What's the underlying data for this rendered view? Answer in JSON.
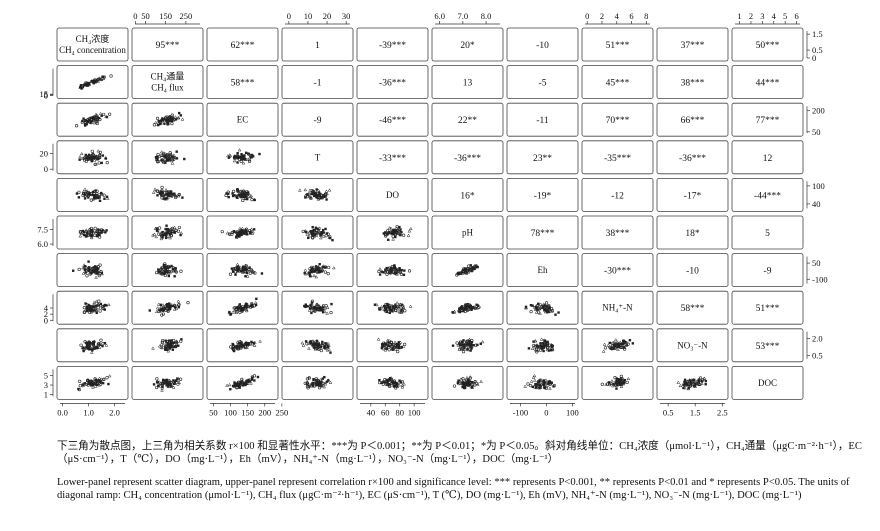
{
  "chart_data": {
    "type": "scatter-matrix",
    "variables": [
      {
        "key": "ch4_conc",
        "label_lines": [
          "CH₄浓度",
          "CH₄ concentration"
        ],
        "range": [
          0,
          1.7
        ],
        "ticks": [
          "0",
          "0.5",
          "1.5"
        ],
        "tick_values": [
          0,
          0.5,
          1.5
        ]
      },
      {
        "key": "ch4_flux",
        "label_lines": [
          "CH₄通量",
          "CH₄ flux"
        ],
        "range": [
          -2,
          320
        ],
        "ticks": [
          "0",
          "50",
          "150",
          "250"
        ],
        "tick_values": [
          0,
          50,
          150,
          250
        ]
      },
      {
        "key": "ec",
        "label_lines": [
          "EC"
        ],
        "range": [
          40,
          230
        ],
        "ticks": [
          "50",
          "200"
        ],
        "tick_values": [
          50,
          200
        ]
      },
      {
        "key": "t",
        "label_lines": [
          "T"
        ],
        "range": [
          -2,
          32
        ],
        "ticks": [
          "0",
          "10",
          "20",
          "30"
        ],
        "tick_values": [
          0,
          10,
          20,
          30
        ]
      },
      {
        "key": "do",
        "label_lines": [
          "DO"
        ],
        "range": [
          25,
          115
        ],
        "ticks": [
          "40",
          "100"
        ],
        "tick_values": [
          40,
          100
        ]
      },
      {
        "key": "ph",
        "label_lines": [
          "pH"
        ],
        "range": [
          5.8,
          8.6
        ],
        "ticks": [
          "6.0",
          "7.0",
          "8.0"
        ],
        "tick_values": [
          6.0,
          7.0,
          8.0
        ]
      },
      {
        "key": "eh",
        "label_lines": [
          "Eh"
        ],
        "range": [
          -140,
          110
        ],
        "ticks": [
          "50",
          "-100"
        ],
        "tick_values": [
          50,
          -100
        ]
      },
      {
        "key": "nh4",
        "label_lines": [
          "NH₄⁺-N"
        ],
        "range": [
          -0.3,
          8.5
        ],
        "ticks": [
          "0",
          "2",
          "4",
          "6",
          "8"
        ],
        "tick_values": [
          0,
          2,
          4,
          6,
          8
        ]
      },
      {
        "key": "no3",
        "label_lines": [
          "NO₃⁻-N"
        ],
        "range": [
          0.2,
          2.6
        ],
        "ticks": [
          "0.5",
          "2.0"
        ],
        "tick_values": [
          0.5,
          2.0
        ]
      },
      {
        "key": "doc",
        "label_lines": [
          "DOC"
        ],
        "range": [
          0.6,
          6.3
        ],
        "ticks": [
          "1",
          "2",
          "3",
          "4",
          "5",
          "6"
        ],
        "tick_values": [
          1,
          2,
          3,
          4,
          5,
          6
        ]
      }
    ],
    "left_axis_ticks": {
      "1": {
        "labels": [
          "15",
          "5",
          "0"
        ],
        "values": [
          15,
          5,
          0
        ]
      },
      "3": {
        "labels": [
          "20",
          "0"
        ],
        "values": [
          20,
          0
        ]
      },
      "5": {
        "labels": [
          "7.5",
          "6.0"
        ],
        "values": [
          7.5,
          6.0
        ]
      },
      "7": {
        "labels": [
          "4",
          "2",
          "0"
        ],
        "values": [
          4,
          2,
          0
        ]
      },
      "9": {
        "labels": [
          "5",
          "3",
          "1"
        ],
        "values": [
          5,
          3,
          1
        ]
      }
    },
    "bottom_axis_ticks": {
      "0": {
        "labels": [
          "0.0",
          "1.0",
          "2.0"
        ],
        "values": [
          0,
          1,
          2
        ]
      },
      "2": {
        "labels": [
          "50",
          "100",
          "150",
          "200",
          "250"
        ],
        "values": [
          50,
          100,
          150,
          200,
          250
        ]
      },
      "4": {
        "labels": [
          "40",
          "60",
          "80",
          "100"
        ],
        "values": [
          40,
          60,
          80,
          100
        ]
      },
      "6": {
        "labels": [
          "-100",
          "0",
          "100"
        ],
        "values": [
          -100,
          0,
          100
        ]
      },
      "8": {
        "labels": [
          "0.5",
          "1.5",
          "2.5"
        ],
        "values": [
          0.5,
          1.5,
          2.5
        ]
      }
    },
    "correlations": [
      [
        "95***",
        "62***",
        "1",
        "-39***",
        "20*",
        "-10",
        "51***",
        "37***",
        "50***"
      ],
      [
        "58***",
        "-1",
        "-36***",
        "13",
        "-5",
        "45***",
        "38***",
        "44***"
      ],
      [
        "-9",
        "-46***",
        "22**",
        "-11",
        "70***",
        "66***",
        "77***"
      ],
      [
        "-33***",
        "-36***",
        "23**",
        "-35***",
        "-36***",
        "12"
      ],
      [
        "16*",
        "-19*",
        "-12",
        "-17*",
        "-44***"
      ],
      [
        "78***",
        "38***",
        "18*",
        "5"
      ],
      [
        "-30***",
        "-10",
        "-9"
      ],
      [
        "58***",
        "51***"
      ],
      [
        "53***"
      ]
    ],
    "correlation_scale": "r×100",
    "point_counts_per_panel": 60
  },
  "caption": {
    "cn": "下三角为散点图，上三角为相关系数 r×100 和显著性水平：***为 P＜0.001；**为 P＜0.01；*为 P＜0.05。斜对角线单位：CH₄浓度（μmol·L⁻¹），CH₄通量（μgC·m⁻²·h⁻¹），EC（μS·cm⁻¹），T（℃），DO（mg·L⁻¹），Eh（mV），NH₄⁺-N（mg·L⁻¹），NO₃⁻-N（mg·L⁻¹），DOC（mg·L⁻¹）",
    "en": "Lower-panel represent scatter diagram, upper-panel represent correlation r×100 and significance level: *** represents P<0.001, ** represents P<0.01 and * represents P<0.05. The units of diagonal ramp: CH₄ concentration (μmol·L⁻¹), CH₄ flux (μgC·m⁻²·h⁻¹), EC (μS·cm⁻¹), T (℃), DO (mg·L⁻¹), Eh (mV), NH₄⁺-N (mg·L⁻¹), NO₃⁻-N (mg·L⁻¹), DOC (mg·L⁻¹)"
  }
}
